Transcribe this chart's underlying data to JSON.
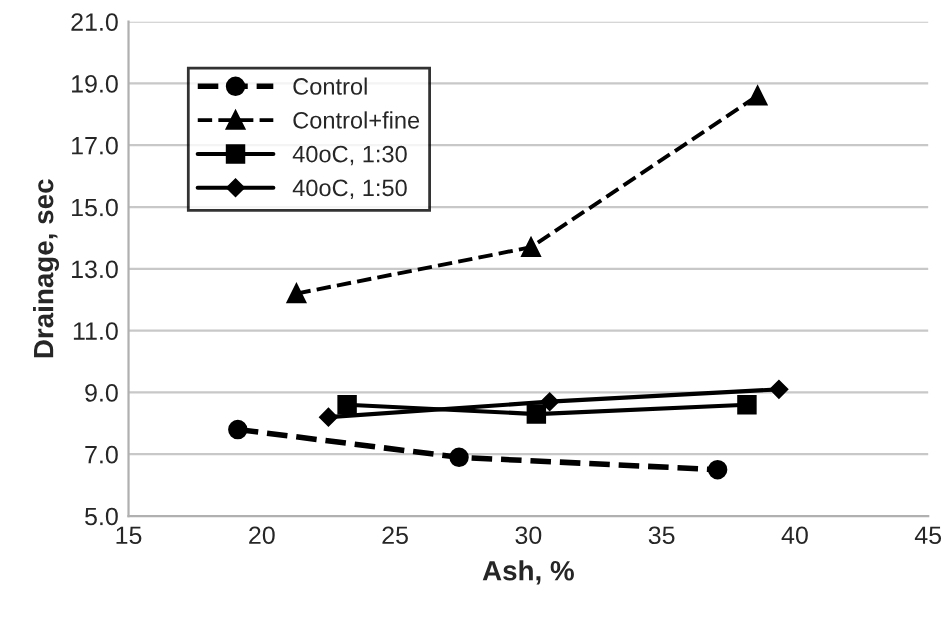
{
  "chart_data": {
    "type": "line",
    "xlabel": "Ash, %",
    "ylabel": "Drainage, sec",
    "xlim": [
      15,
      45
    ],
    "xticks": [
      15,
      20,
      25,
      30,
      35,
      40,
      45
    ],
    "ylim": [
      5,
      21
    ],
    "yticks": [
      {
        "value": 5,
        "label": "5.0"
      },
      {
        "value": 7,
        "label": "7.0"
      },
      {
        "value": 9,
        "label": "9.0"
      },
      {
        "value": 11,
        "label": "11.0"
      },
      {
        "value": 13,
        "label": "13.0"
      },
      {
        "value": 15,
        "label": "15.0"
      },
      {
        "value": 17,
        "label": "17.0"
      },
      {
        "value": 19,
        "label": "19.0"
      },
      {
        "value": 21,
        "label": "21.0"
      }
    ],
    "grid": "y",
    "legend": "top left",
    "series": [
      {
        "name": "Control",
        "color": "#000000",
        "marker": "circle",
        "line_style": "dashed",
        "x": [
          19.1,
          27.4,
          37.1
        ],
        "values": [
          7.8,
          6.9,
          6.5
        ]
      },
      {
        "name": "Control+fine",
        "color": "#000000",
        "marker": "triangle",
        "line_style": "dashed",
        "x": [
          21.3,
          30.1,
          38.6
        ],
        "values": [
          12.2,
          13.7,
          18.6
        ]
      },
      {
        "name": "40oC, 1:30",
        "color": "#000000",
        "marker": "square",
        "line_style": "solid",
        "x": [
          23.2,
          30.3,
          38.2
        ],
        "values": [
          8.6,
          8.3,
          8.6
        ]
      },
      {
        "name": "40oC, 1:50",
        "color": "#000000",
        "marker": "diamond",
        "line_style": "solid",
        "x": [
          22.5,
          30.8,
          39.4
        ],
        "values": [
          8.2,
          8.7,
          9.1
        ]
      }
    ]
  }
}
